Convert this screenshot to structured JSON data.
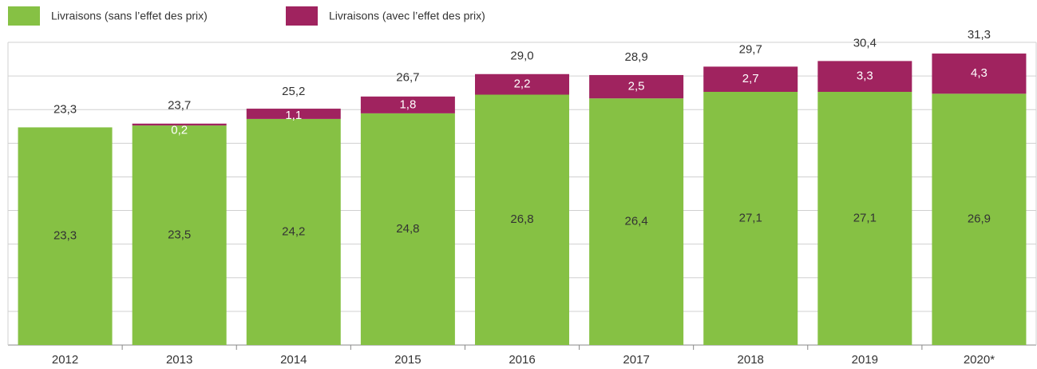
{
  "chart_data": {
    "type": "stacked_bar",
    "categories": [
      "2012",
      "2013",
      "2014",
      "2015",
      "2016",
      "2017",
      "2018",
      "2019",
      "2020*"
    ],
    "series": [
      {
        "name": "Livraisons (sans l’effet des prix)",
        "color": "#86c144",
        "values": [
          23.3,
          23.5,
          24.2,
          24.8,
          26.8,
          26.4,
          27.1,
          27.1,
          26.9
        ],
        "value_labels": [
          "23,3",
          "23,5",
          "24,2",
          "24,8",
          "26,8",
          "26,4",
          "27,1",
          "27,1",
          "26,9"
        ]
      },
      {
        "name": "Livraisons (avec l’effet des prix)",
        "color": "#a0235f",
        "values": [
          null,
          0.2,
          1.1,
          1.8,
          2.2,
          2.5,
          2.7,
          3.3,
          4.3
        ],
        "value_labels": [
          null,
          "0,2",
          "1,1",
          "1,8",
          "2,2",
          "2,5",
          "2,7",
          "3,3",
          "4,3"
        ]
      }
    ],
    "totals": [
      23.3,
      23.7,
      25.2,
      26.7,
      29.0,
      28.9,
      29.7,
      30.4,
      31.3
    ],
    "total_labels": [
      "23,3",
      "23,7",
      "25,2",
      "26,7",
      "29,0",
      "28,9",
      "29,7",
      "30,4",
      "31,3"
    ],
    "ylim": [
      0,
      32.4
    ],
    "yticks": [
      0,
      3.6,
      7.2,
      10.8,
      14.4,
      18,
      21.6,
      25.2,
      28.8,
      32.4
    ],
    "grid": true
  }
}
